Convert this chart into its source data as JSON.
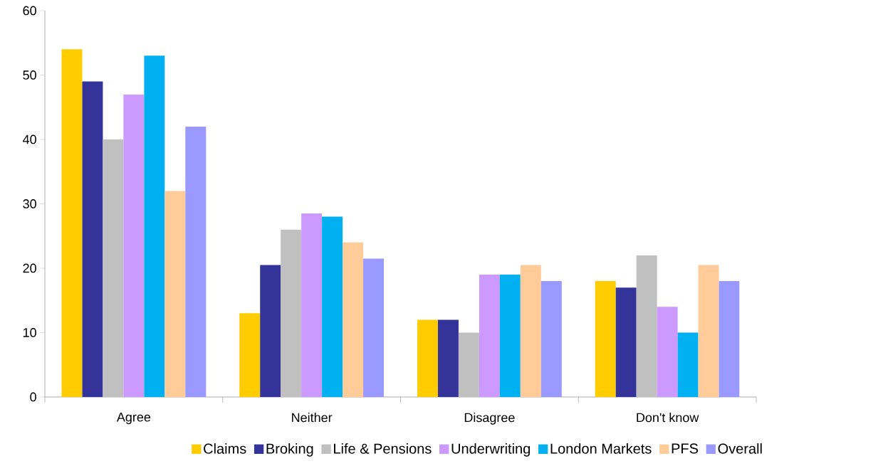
{
  "chart_data": {
    "type": "bar",
    "categories": [
      "Agree",
      "Neither",
      "Disagree",
      "Don't know"
    ],
    "series": [
      {
        "name": "Claims",
        "color": "#ffcc00",
        "values": [
          54,
          13,
          12,
          18
        ]
      },
      {
        "name": "Broking",
        "color": "#333399",
        "values": [
          49,
          20.5,
          12,
          17
        ]
      },
      {
        "name": "Life & Pensions",
        "color": "#c0c0c0",
        "values": [
          40,
          26,
          10,
          22
        ]
      },
      {
        "name": "Underwriting",
        "color": "#cc99ff",
        "values": [
          47,
          28.5,
          19,
          14
        ]
      },
      {
        "name": "London Markets",
        "color": "#00b0f0",
        "values": [
          53,
          28,
          19,
          10
        ]
      },
      {
        "name": "PFS",
        "color": "#ffcc99",
        "values": [
          32,
          24,
          20.5,
          20.5
        ]
      },
      {
        "name": "Overall",
        "color": "#9999ff",
        "values": [
          42,
          21.5,
          18,
          18
        ]
      }
    ],
    "ylim": [
      0,
      60
    ],
    "yticks": [
      0,
      10,
      20,
      30,
      40,
      50,
      60
    ],
    "grid": false,
    "legend": "bottom"
  }
}
